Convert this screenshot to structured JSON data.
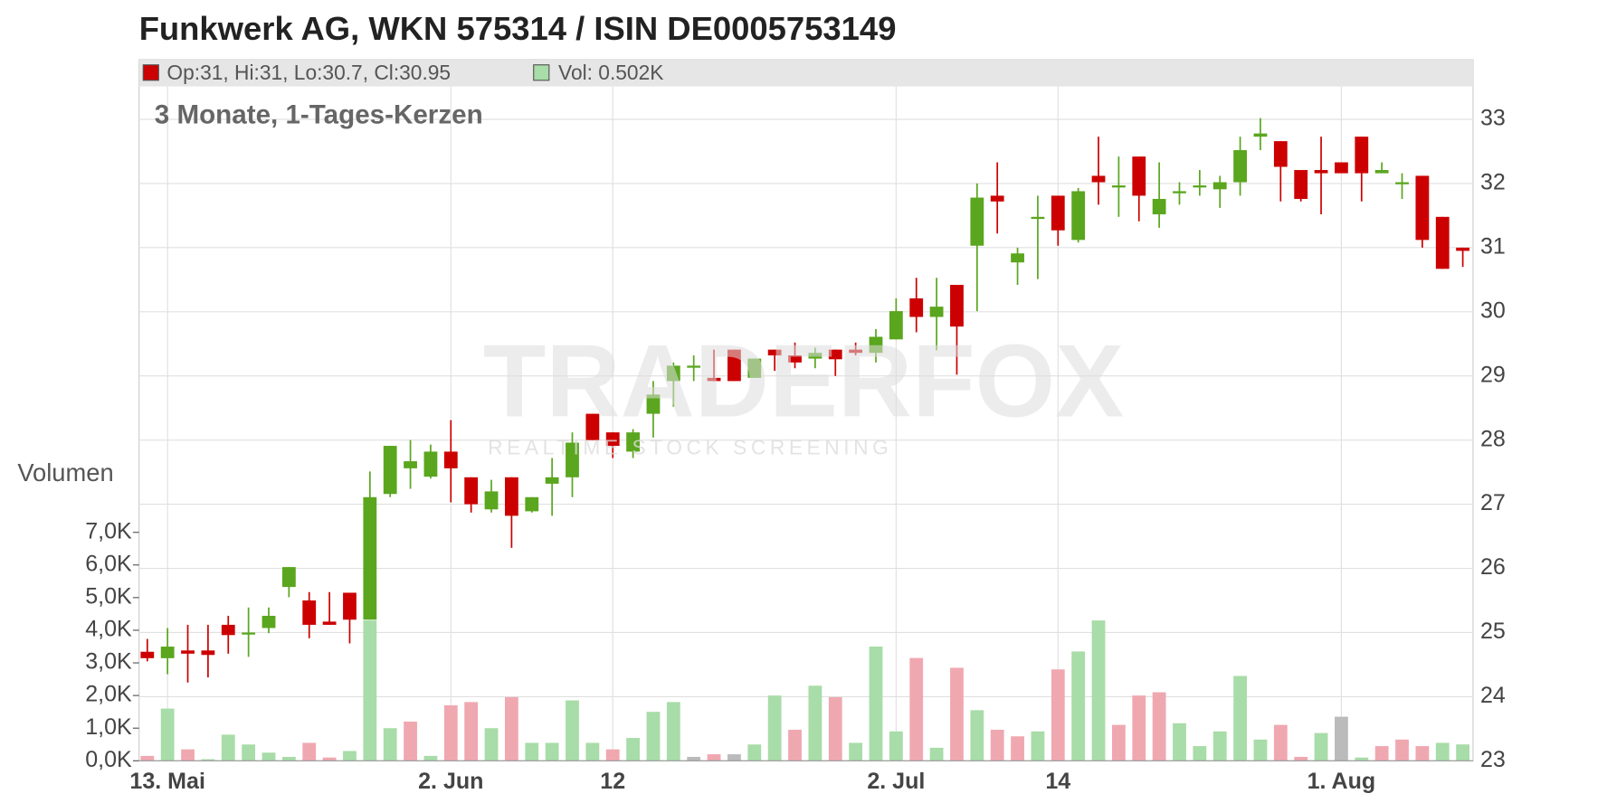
{
  "chart_data": {
    "type": "candlestick",
    "title": "Funkwerk AG, WKN 575314 / ISIN DE0005753149",
    "subtitle": "3 Monate, 1-Tages-Kerzen",
    "legend": {
      "price": "Op:31, Hi:31, Lo:30.7, Cl:30.95",
      "volume": "Vol: 0.502K"
    },
    "watermark": "TRADERFOX",
    "watermark_sub": "REALTIME STOCK SCREENING",
    "categories": [
      null,
      "13. Mai",
      null,
      null,
      null,
      null,
      null,
      null,
      null,
      null,
      null,
      null,
      null,
      null,
      null,
      "2. Jun",
      null,
      null,
      null,
      null,
      null,
      null,
      null,
      "12",
      null,
      null,
      null,
      null,
      null,
      null,
      null,
      null,
      null,
      null,
      null,
      null,
      null,
      "2. Jul",
      null,
      null,
      null,
      null,
      null,
      null,
      null,
      "14",
      null,
      null,
      null,
      null,
      null,
      null,
      null,
      null,
      null,
      null,
      null,
      null,
      null,
      "1. Aug",
      null,
      null,
      null,
      null,
      null,
      null
    ],
    "open": [
      24.7,
      24.6,
      24.72,
      24.72,
      25.12,
      24.98,
      25.07,
      25.71,
      25.5,
      25.17,
      25.62,
      25.2,
      27.16,
      27.56,
      27.43,
      27.82,
      27.42,
      26.92,
      27.42,
      26.89,
      27.32,
      27.42,
      28.41,
      28.12,
      27.82,
      28.41,
      28.92,
      29.16,
      28.97,
      29.41,
      28.97,
      29.41,
      29.32,
      29.27,
      29.41,
      29.41,
      29.36,
      29.57,
      30.21,
      29.92,
      30.42,
      31.03,
      31.81,
      30.77,
      31.48,
      31.81,
      31.12,
      32.12,
      31.97,
      32.42,
      31.52,
      31.88,
      31.97,
      31.91,
      32.02,
      32.73,
      32.66,
      32.21,
      32.21,
      32.33,
      32.73,
      32.16,
      32.02,
      32.12,
      31.48,
      31
    ],
    "high": [
      24.9,
      25.07,
      25.12,
      25.12,
      25.26,
      25.39,
      25.39,
      26.02,
      25.63,
      25.63,
      25.62,
      27.51,
      27.91,
      28.0,
      27.93,
      28.31,
      27.42,
      27.38,
      27.42,
      27.11,
      27.72,
      28.12,
      28.41,
      28.12,
      28.17,
      28.92,
      29.21,
      29.32,
      29.41,
      29.41,
      29.27,
      29.41,
      29.52,
      29.44,
      29.41,
      29.52,
      29.73,
      30.21,
      30.53,
      30.53,
      30.42,
      32.0,
      32.33,
      31.0,
      31.81,
      31.81,
      31.93,
      32.73,
      32.42,
      32.42,
      32.33,
      32.02,
      32.21,
      32.12,
      32.73,
      33.02,
      32.66,
      32.21,
      32.73,
      32.33,
      32.73,
      32.33,
      32.16,
      32.12,
      31.48,
      31
    ],
    "low": [
      24.55,
      24.35,
      24.22,
      24.3,
      24.67,
      24.62,
      24.99,
      25.55,
      24.91,
      25.12,
      24.83,
      25.2,
      27.11,
      27.24,
      27.4,
      27.03,
      26.87,
      26.87,
      26.32,
      26.87,
      26.82,
      27.11,
      28.0,
      27.72,
      27.72,
      28.04,
      28.52,
      28.92,
      28.92,
      28.92,
      28.97,
      29.08,
      29.12,
      29.12,
      29.0,
      29.32,
      29.21,
      29.57,
      29.68,
      29.4,
      29.02,
      30.01,
      31.22,
      30.42,
      30.51,
      31.03,
      31.08,
      31.67,
      31.48,
      31.41,
      31.31,
      31.67,
      31.81,
      31.62,
      31.81,
      32.52,
      31.72,
      31.72,
      31.52,
      32.16,
      31.72,
      32.16,
      31.76,
      31.0,
      30.67,
      30.7
    ],
    "close": [
      24.6,
      24.78,
      24.67,
      24.65,
      24.96,
      25.0,
      25.26,
      26.02,
      25.12,
      25.12,
      25.2,
      27.11,
      27.91,
      27.67,
      27.82,
      27.56,
      27.0,
      27.2,
      26.82,
      27.11,
      27.42,
      27.96,
      28.0,
      27.91,
      28.12,
      28.71,
      29.16,
      29.16,
      28.92,
      28.92,
      29.27,
      29.32,
      29.21,
      29.36,
      29.26,
      29.36,
      29.61,
      30.01,
      29.92,
      30.08,
      29.77,
      31.78,
      31.72,
      30.91,
      31.48,
      31.27,
      31.88,
      32.02,
      31.97,
      31.81,
      31.76,
      31.88,
      31.97,
      32.02,
      32.52,
      32.78,
      32.26,
      31.76,
      32.16,
      32.16,
      32.16,
      32.21,
      32.02,
      31.12,
      30.67,
      30.95
    ],
    "up_color": "#5aa61e",
    "down_color": "#cc0000",
    "ylim": [
      23,
      33.93
    ],
    "yticks": [
      23,
      24,
      25,
      26,
      27,
      28,
      29,
      30,
      31,
      32,
      33
    ],
    "grid": true,
    "volume": {
      "label": "Volumen",
      "values": [
        0.15,
        1.6,
        0.35,
        0.05,
        0.8,
        0.5,
        0.25,
        0.12,
        0.55,
        0.1,
        0.3,
        4.3,
        1.0,
        1.2,
        0.15,
        1.7,
        1.8,
        1.0,
        1.95,
        0.55,
        0.55,
        1.85,
        0.55,
        0.35,
        0.7,
        1.5,
        1.8,
        0.12,
        0.2,
        0.2,
        0.5,
        2.0,
        0.95,
        2.3,
        1.95,
        0.55,
        3.5,
        0.9,
        3.15,
        0.4,
        2.85,
        1.55,
        0.95,
        0.75,
        0.9,
        2.8,
        3.35,
        4.3,
        1.1,
        2.0,
        2.1,
        1.15,
        0.45,
        0.9,
        2.6,
        0.65,
        1.1,
        0.12,
        0.85,
        1.35,
        0.1,
        0.45,
        0.65,
        0.45,
        0.55,
        0.502
      ],
      "colors": [
        "#f0a8b0",
        "#a8dca8",
        "#f0a8b0",
        "#a8dca8",
        "#a8dca8",
        "#a8dca8",
        "#a8dca8",
        "#a8dca8",
        "#f0a8b0",
        "#f0a8b0",
        "#a8dca8",
        "#a8dca8",
        "#a8dca8",
        "#f0a8b0",
        "#a8dca8",
        "#f0a8b0",
        "#f0a8b0",
        "#a8dca8",
        "#f0a8b0",
        "#a8dca8",
        "#a8dca8",
        "#a8dca8",
        "#a8dca8",
        "#f0a8b0",
        "#a8dca8",
        "#a8dca8",
        "#a8dca8",
        "#bbbbbb",
        "#f0a8b0",
        "#bbbbbb",
        "#a8dca8",
        "#a8dca8",
        "#f0a8b0",
        "#a8dca8",
        "#f0a8b0",
        "#a8dca8",
        "#a8dca8",
        "#a8dca8",
        "#f0a8b0",
        "#a8dca8",
        "#f0a8b0",
        "#a8dca8",
        "#f0a8b0",
        "#f0a8b0",
        "#a8dca8",
        "#f0a8b0",
        "#a8dca8",
        "#a8dca8",
        "#f0a8b0",
        "#f0a8b0",
        "#f0a8b0",
        "#a8dca8",
        "#a8dca8",
        "#a8dca8",
        "#a8dca8",
        "#a8dca8",
        "#f0a8b0",
        "#f0a8b0",
        "#a8dca8",
        "#bbbbbb",
        "#a8dca8",
        "#f0a8b0",
        "#f0a8b0",
        "#f0a8b0",
        "#a8dca8",
        "#a8dca8"
      ],
      "ylim": [
        0,
        21.48
      ],
      "yticks": [
        {
          "value": 0,
          "label": "0,0K"
        },
        {
          "value": 1,
          "label": "1,0K"
        },
        {
          "value": 2,
          "label": "2,0K"
        },
        {
          "value": 3,
          "label": "3,0K"
        },
        {
          "value": 4,
          "label": "4,0K"
        },
        {
          "value": 5,
          "label": "5,0K"
        },
        {
          "value": 6,
          "label": "6,0K"
        },
        {
          "value": 7,
          "label": "7,0K"
        }
      ]
    }
  }
}
